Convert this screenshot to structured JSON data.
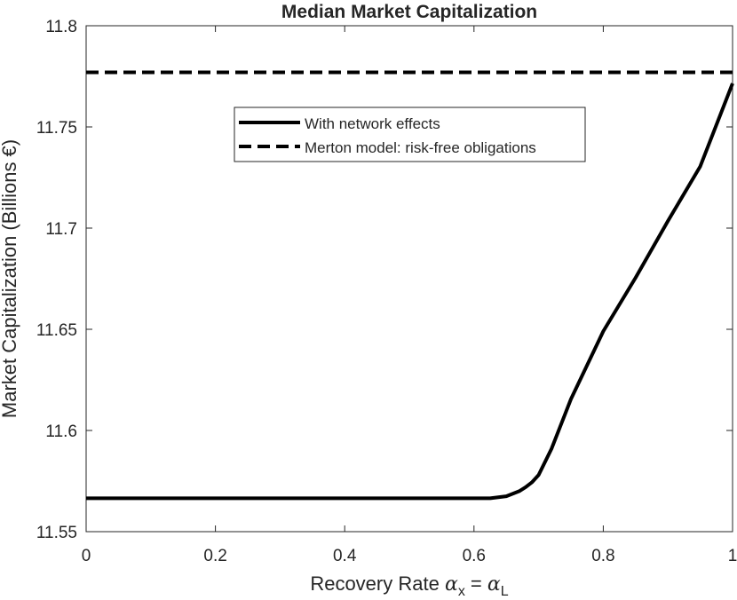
{
  "chart_data": {
    "type": "line",
    "title": "Median Market Capitalization",
    "xlabel_prefix": "Recovery Rate ",
    "xlabel_alpha": "α",
    "xlabel_sub_x": "x",
    "xlabel_eq": " = ",
    "xlabel_sub_l": "L",
    "ylabel": "Market Capitalization (Billions €)",
    "xlim": [
      0,
      1
    ],
    "ylim": [
      11.55,
      11.8
    ],
    "xticks": [
      "0",
      "0.2",
      "0.4",
      "0.6",
      "0.8",
      "1"
    ],
    "xtick_values": [
      0,
      0.2,
      0.4,
      0.6,
      0.8,
      1
    ],
    "yticks": [
      "11.55",
      "11.6",
      "11.65",
      "11.7",
      "11.75",
      "11.8"
    ],
    "ytick_values": [
      11.55,
      11.6,
      11.65,
      11.7,
      11.75,
      11.8
    ],
    "grid": false,
    "legend_position": "top-center",
    "series": [
      {
        "name": "With network effects",
        "style": "solid",
        "color": "#000000",
        "x": [
          0,
          0.1,
          0.2,
          0.3,
          0.4,
          0.5,
          0.6,
          0.625,
          0.65,
          0.67,
          0.68,
          0.69,
          0.7,
          0.72,
          0.75,
          0.8,
          0.85,
          0.9,
          0.95,
          1.0
        ],
        "y": [
          11.5665,
          11.5665,
          11.5665,
          11.5665,
          11.5665,
          11.5665,
          11.5665,
          11.5665,
          11.5675,
          11.57,
          11.572,
          11.5745,
          11.578,
          11.591,
          11.6155,
          11.649,
          11.6755,
          11.7035,
          11.7305,
          11.7715
        ]
      },
      {
        "name": "Merton model: risk-free obligations",
        "style": "dashed",
        "color": "#000000",
        "x": [
          0,
          1
        ],
        "y": [
          11.777,
          11.777
        ]
      }
    ]
  }
}
